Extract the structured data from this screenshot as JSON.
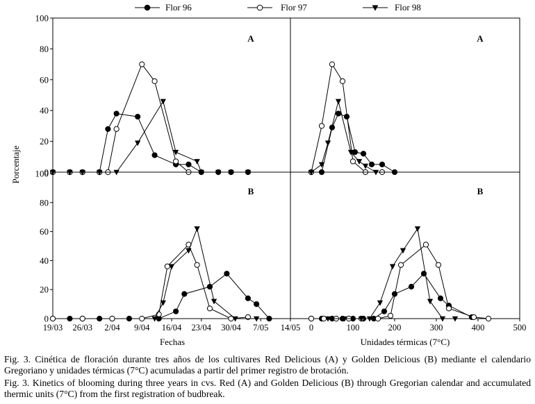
{
  "legend": {
    "items": [
      {
        "label": "Flor 96",
        "marker": "filled-circle"
      },
      {
        "label": "Flor 97",
        "marker": "open-circle"
      },
      {
        "label": "Flor 98",
        "marker": "filled-triangle-down"
      }
    ]
  },
  "y_axis_label": "Porcentaje",
  "caption": {
    "spanish": "Fig. 3. Cinética de floración durante tres años de los cultivares Red Delicious (A) y Golden Delicious (B) mediante el calendario Gregoriano y unidades térmicas (7°C) acumuladas a partir del primer registro de brotación.",
    "english": "Fig. 3. Kinetics of blooming during three years in cvs. Red (A) and Golden Delicious (B) through Gregorian calendar and accumulated thermic units (7°C) from the first registration of budbreak."
  },
  "colors": {
    "line": "#000000",
    "background": "#ffffff"
  },
  "chart_data": [
    {
      "id": "date-A",
      "type": "line",
      "panel_label": "A",
      "x_axis": "date",
      "xlim": [
        "2019-03-19",
        "2019-05-14"
      ],
      "xticks": [
        "2019-03-19",
        "2019-03-26",
        "2019-04-02",
        "2019-04-09",
        "2019-04-16",
        "2019-04-23",
        "2019-04-30",
        "2019-05-07",
        "2019-05-14"
      ],
      "ylim": [
        0,
        100
      ],
      "yticks": [
        0,
        20,
        40,
        60,
        80,
        100
      ],
      "series": [
        {
          "name": "Flor 96",
          "marker": "filled-circle",
          "points": [
            [
              "2019-03-19",
              0
            ],
            [
              "2019-03-23",
              0
            ],
            [
              "2019-03-26",
              0
            ],
            [
              "2019-03-30",
              0
            ],
            [
              "2019-04-01",
              28
            ],
            [
              "2019-04-03",
              38
            ],
            [
              "2019-04-08",
              36
            ],
            [
              "2019-04-12",
              11
            ],
            [
              "2019-04-17",
              5
            ],
            [
              "2019-04-20",
              5
            ],
            [
              "2019-04-23",
              0
            ],
            [
              "2019-04-27",
              0
            ],
            [
              "2019-04-30",
              0
            ],
            [
              "2019-05-04",
              0
            ]
          ]
        },
        {
          "name": "Flor 97",
          "marker": "open-circle",
          "points": [
            [
              "2019-03-19",
              0
            ],
            [
              "2019-03-23",
              0
            ],
            [
              "2019-03-26",
              0
            ],
            [
              "2019-03-30",
              0
            ],
            [
              "2019-04-01",
              0
            ],
            [
              "2019-04-03",
              28
            ],
            [
              "2019-04-09",
              70
            ],
            [
              "2019-04-12",
              59
            ],
            [
              "2019-04-17",
              7
            ],
            [
              "2019-04-20",
              0
            ]
          ]
        },
        {
          "name": "Flor 98",
          "marker": "filled-triangle-down",
          "points": [
            [
              "2019-03-19",
              0
            ],
            [
              "2019-03-23",
              0
            ],
            [
              "2019-03-26",
              0
            ],
            [
              "2019-03-30",
              0
            ],
            [
              "2019-04-03",
              0
            ],
            [
              "2019-04-08",
              19
            ],
            [
              "2019-04-14",
              46
            ],
            [
              "2019-04-17",
              13
            ],
            [
              "2019-04-22",
              7
            ],
            [
              "2019-04-23",
              0
            ],
            [
              "2019-04-27",
              0
            ],
            [
              "2019-04-30",
              0
            ],
            [
              "2019-05-04",
              0
            ]
          ]
        }
      ]
    },
    {
      "id": "thermal-A",
      "type": "line",
      "panel_label": "A",
      "x_axis": "numeric",
      "xlim": [
        -50,
        500
      ],
      "xticks": [
        0,
        100,
        200,
        300,
        400,
        500
      ],
      "ylim": [
        0,
        100
      ],
      "yticks": [
        0,
        20,
        40,
        60,
        80,
        100
      ],
      "series": [
        {
          "name": "Flor 96",
          "marker": "filled-circle",
          "points": [
            [
              0,
              0
            ],
            [
              25,
              0
            ],
            [
              50,
              29
            ],
            [
              65,
              38
            ],
            [
              85,
              36
            ],
            [
              105,
              13
            ],
            [
              125,
              12
            ],
            [
              145,
              5
            ],
            [
              170,
              5
            ],
            [
              200,
              0
            ]
          ]
        },
        {
          "name": "Flor 97",
          "marker": "open-circle",
          "points": [
            [
              0,
              0
            ],
            [
              25,
              30
            ],
            [
              50,
              70
            ],
            [
              75,
              59
            ],
            [
              100,
              7
            ],
            [
              130,
              0
            ],
            [
              170,
              0
            ]
          ]
        },
        {
          "name": "Flor 98",
          "marker": "filled-triangle-down",
          "points": [
            [
              0,
              0
            ],
            [
              25,
              5
            ],
            [
              40,
              19
            ],
            [
              65,
              46
            ],
            [
              95,
              13
            ],
            [
              115,
              7
            ],
            [
              130,
              4
            ],
            [
              155,
              0
            ]
          ]
        }
      ]
    },
    {
      "id": "date-B",
      "type": "line",
      "panel_label": "B",
      "x_axis": "date",
      "xlim": [
        "2019-03-19",
        "2019-05-14"
      ],
      "xticks": [
        "2019-03-19",
        "2019-03-26",
        "2019-04-02",
        "2019-04-09",
        "2019-04-16",
        "2019-04-23",
        "2019-04-30",
        "2019-05-07",
        "2019-05-14"
      ],
      "xticklabels": [
        "19/03",
        "26/03",
        "2/04",
        "9/04",
        "16/04",
        "23/04",
        "30/04",
        "7/05",
        "14/05"
      ],
      "ylim": [
        0,
        100
      ],
      "yticks": [
        0,
        20,
        40,
        60,
        80,
        100
      ],
      "series": [
        {
          "name": "Flor 96",
          "marker": "filled-circle",
          "points": [
            [
              "2019-03-19",
              0
            ],
            [
              "2019-03-23",
              0
            ],
            [
              "2019-03-26",
              0
            ],
            [
              "2019-03-30",
              0
            ],
            [
              "2019-04-02",
              0
            ],
            [
              "2019-04-06",
              0
            ],
            [
              "2019-04-13",
              0
            ],
            [
              "2019-04-17",
              5
            ],
            [
              "2019-04-19",
              17
            ],
            [
              "2019-04-25",
              22
            ],
            [
              "2019-04-29",
              31
            ],
            [
              "2019-05-04",
              14
            ],
            [
              "2019-05-06",
              10
            ],
            [
              "2019-05-09",
              0
            ]
          ]
        },
        {
          "name": "Flor 97",
          "marker": "open-circle",
          "points": [
            [
              "2019-03-19",
              0
            ],
            [
              "2019-03-26",
              0
            ],
            [
              "2019-04-02",
              0
            ],
            [
              "2019-04-09",
              0
            ],
            [
              "2019-04-13",
              3
            ],
            [
              "2019-04-15",
              36
            ],
            [
              "2019-04-20",
              51
            ],
            [
              "2019-04-22",
              37
            ],
            [
              "2019-04-25",
              7
            ],
            [
              "2019-04-30",
              0
            ],
            [
              "2019-05-04",
              1
            ]
          ]
        },
        {
          "name": "Flor 98",
          "marker": "filled-triangle-down",
          "points": [
            [
              "2019-04-12",
              0
            ],
            [
              "2019-04-14",
              11
            ],
            [
              "2019-04-16",
              36
            ],
            [
              "2019-04-20",
              47
            ],
            [
              "2019-04-22",
              62
            ],
            [
              "2019-04-26",
              12
            ],
            [
              "2019-05-01",
              0
            ],
            [
              "2019-05-06",
              0
            ]
          ]
        }
      ]
    },
    {
      "id": "thermal-B",
      "type": "line",
      "panel_label": "B",
      "x_axis": "numeric",
      "xlim": [
        -50,
        500
      ],
      "xticks": [
        0,
        100,
        200,
        300,
        400,
        500
      ],
      "xlabel": "Unidades térmicas (7°C)",
      "ylim": [
        0,
        100
      ],
      "yticks": [
        0,
        20,
        40,
        60,
        80,
        100
      ],
      "series": [
        {
          "name": "Flor 96",
          "marker": "filled-circle",
          "points": [
            [
              0,
              0
            ],
            [
              25,
              0
            ],
            [
              50,
              0
            ],
            [
              75,
              0
            ],
            [
              100,
              0
            ],
            [
              125,
              0
            ],
            [
              150,
              0
            ],
            [
              175,
              5
            ],
            [
              200,
              17
            ],
            [
              240,
              22
            ],
            [
              270,
              31
            ],
            [
              310,
              14
            ],
            [
              330,
              9
            ],
            [
              385,
              1
            ]
          ]
        },
        {
          "name": "Flor 97",
          "marker": "open-circle",
          "points": [
            [
              0,
              0
            ],
            [
              30,
              0
            ],
            [
              60,
              0
            ],
            [
              90,
              0
            ],
            [
              120,
              0
            ],
            [
              160,
              0
            ],
            [
              190,
              2
            ],
            [
              215,
              37
            ],
            [
              275,
              51
            ],
            [
              305,
              37
            ],
            [
              330,
              7
            ],
            [
              390,
              1
            ],
            [
              425,
              0
            ]
          ]
        },
        {
          "name": "Flor 98",
          "marker": "filled-triangle-down",
          "points": [
            [
              40,
              0
            ],
            [
              80,
              0
            ],
            [
              120,
              0
            ],
            [
              140,
              0
            ],
            [
              165,
              11
            ],
            [
              195,
              36
            ],
            [
              220,
              47
            ],
            [
              255,
              62
            ],
            [
              285,
              12
            ],
            [
              315,
              0
            ],
            [
              345,
              0
            ]
          ]
        }
      ]
    }
  ],
  "x_axis_labels": {
    "dates": "Fechas",
    "thermal": "Unidades térmicas (7°C)"
  },
  "date_tick_labels": [
    "19/03",
    "26/03",
    "2/04",
    "9/04",
    "16/04",
    "23/04",
    "30/04",
    "7/05",
    "14/05"
  ]
}
